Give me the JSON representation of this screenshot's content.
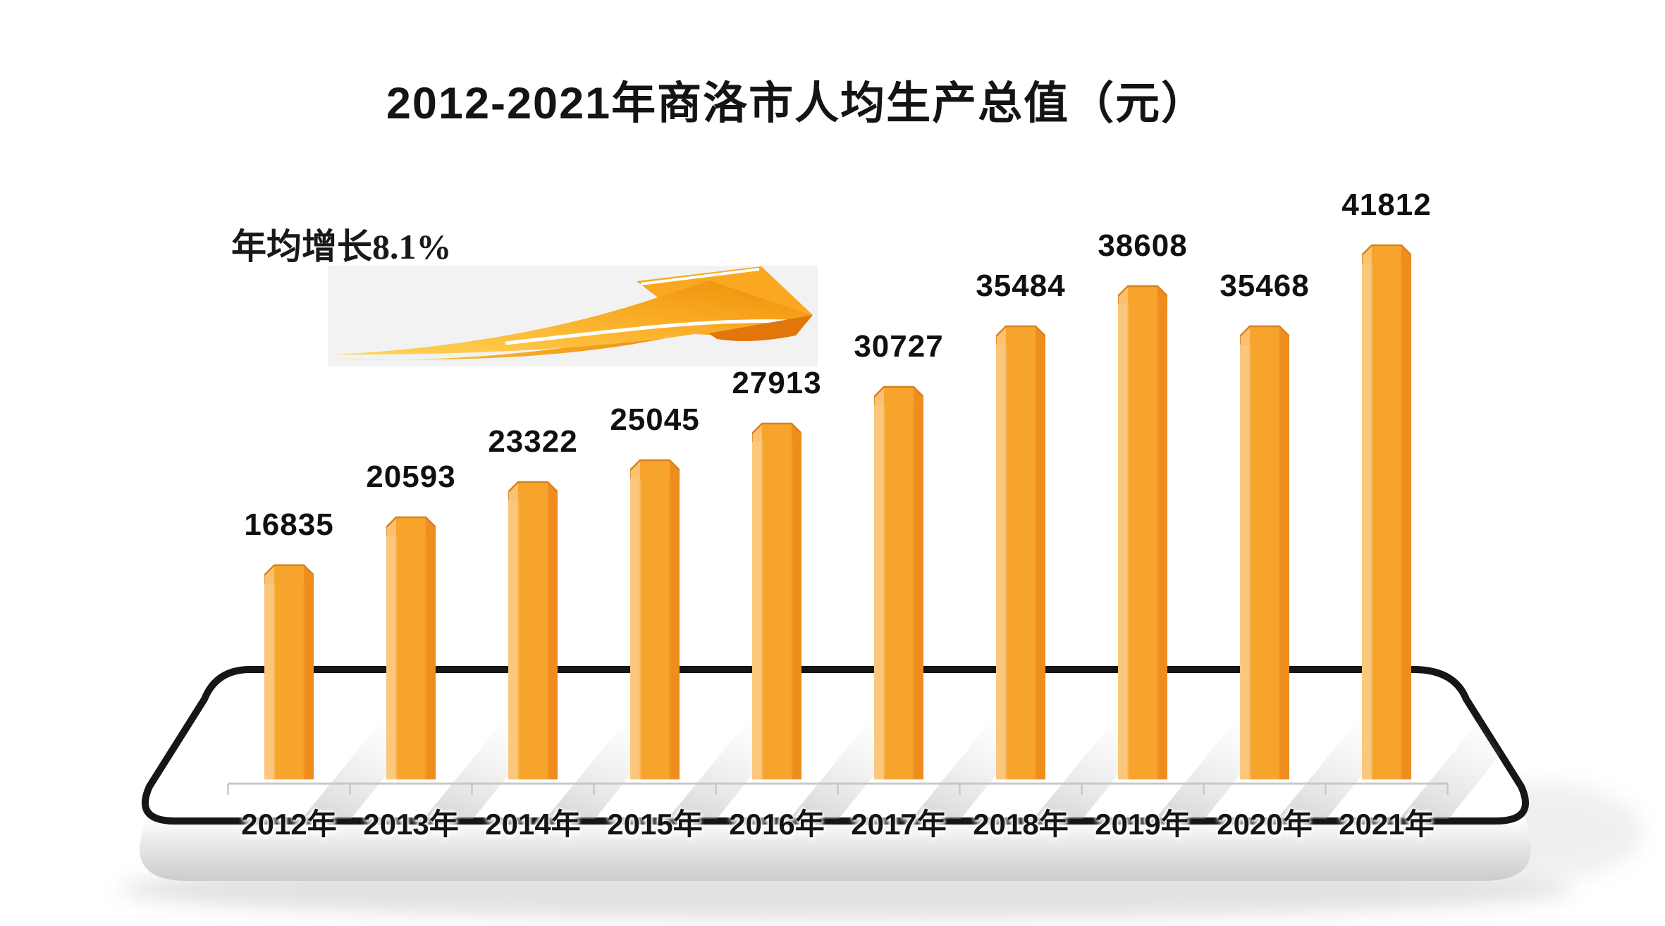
{
  "header": {
    "title": "2012-2021年商洛市人均生产总值（元）"
  },
  "annotation": {
    "label": "年均增长8.1%"
  },
  "icons": {
    "growth_arrow": "swoosh-arrow-up-right"
  },
  "chart_data": {
    "type": "bar",
    "title": "2012-2021年商洛市人均生产总值（元）",
    "unit": "元",
    "categories": [
      "2012年",
      "2013年",
      "2014年",
      "2015年",
      "2016年",
      "2017年",
      "2018年",
      "2019年",
      "2020年",
      "2021年"
    ],
    "values": [
      16835,
      20593,
      23322,
      25045,
      27913,
      30727,
      35484,
      38608,
      35468,
      41812
    ],
    "annotation": "年均增长8.1%",
    "ylim": [
      0,
      41812
    ],
    "grid": false,
    "legend": false,
    "value_labels_shown": true,
    "colors": {
      "bar_main": "#F6A42C",
      "bar_light": "#FAC77D",
      "bar_dark": "#EE8C1E",
      "cap_stroke": "#D8821E",
      "axis": "#C8C8C8",
      "platform_border": "#161616",
      "platform_face_top": "#FFFFFF",
      "platform_face_bottom": "#CCCCCC",
      "arrow_gradient_from": "#FFD65A",
      "arrow_gradient_to": "#EF8E07",
      "arrow_dark_fin": "#E2760A",
      "arrow_background": "#F2F2F2",
      "text": "#141414"
    }
  }
}
